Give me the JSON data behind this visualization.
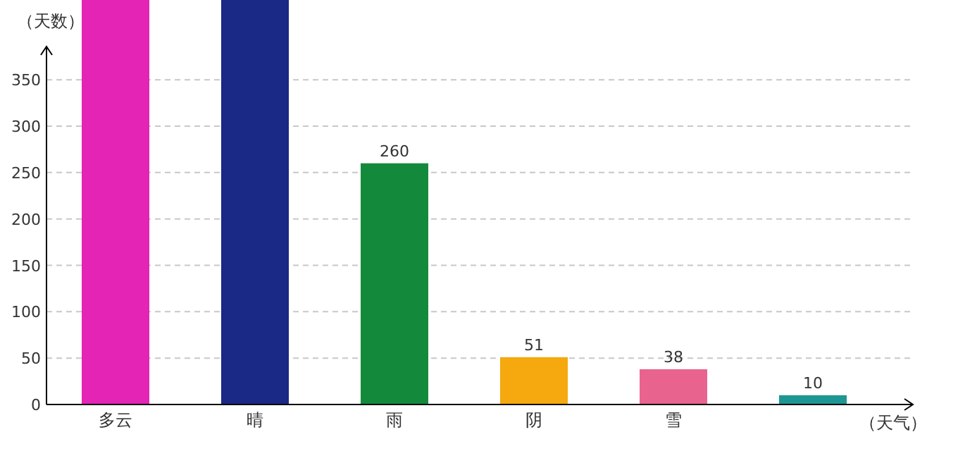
{
  "chart_data": {
    "type": "bar",
    "xlabel": "（天气）",
    "ylabel": "（天数）",
    "categories": [
      "多云",
      "晴",
      "雨",
      "阴",
      "雪",
      null
    ],
    "values": [
      436,
      436,
      260,
      51,
      38,
      10
    ],
    "colors": [
      "#e324b5",
      "#1a2886",
      "#138a3b",
      "#f5a90f",
      "#e9638f",
      "#1e9693"
    ],
    "value_labels": [
      null,
      null,
      "260",
      "51",
      "38",
      "10"
    ],
    "ylim": [
      0,
      436
    ],
    "yticks": [
      0,
      50,
      100,
      150,
      200,
      250,
      300,
      350
    ],
    "grid": "y"
  }
}
